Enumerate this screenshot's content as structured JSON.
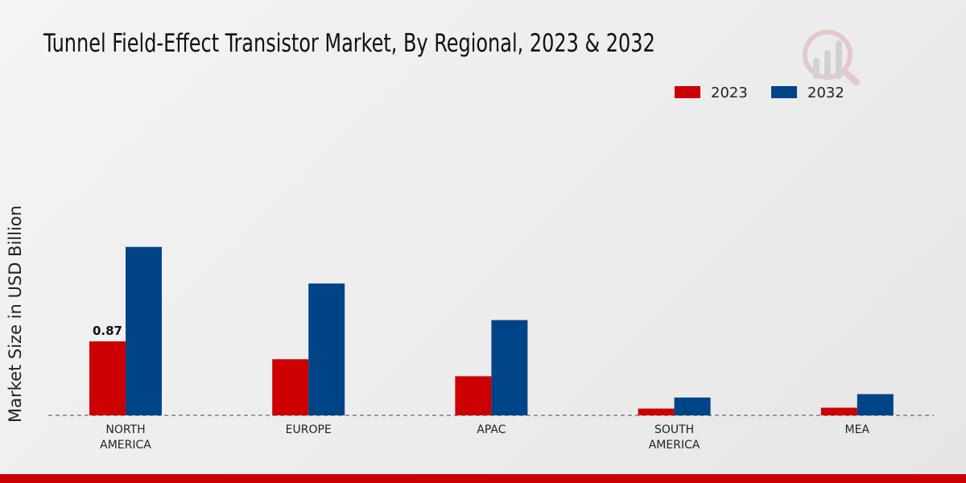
{
  "chart_data": {
    "type": "bar",
    "title": "Tunnel Field-Effect Transistor Market, By Regional, 2023 & 2032",
    "xlabel": "",
    "ylabel": "Market Size in USD Billion",
    "categories": [
      "NORTH AMERICA",
      "EUROPE",
      "APAC",
      "SOUTH AMERICA",
      "MEA"
    ],
    "category_lines": [
      [
        "NORTH",
        "AMERICA"
      ],
      [
        "EUROPE"
      ],
      [
        "APAC"
      ],
      [
        "SOUTH",
        "AMERICA"
      ],
      [
        "MEA"
      ]
    ],
    "series": [
      {
        "name": "2023",
        "color": "#cc0000",
        "values": [
          0.87,
          0.66,
          0.46,
          0.08,
          0.09
        ]
      },
      {
        "name": "2032",
        "color": "#004488",
        "values": [
          1.98,
          1.55,
          1.12,
          0.21,
          0.25
        ]
      }
    ],
    "data_labels": [
      {
        "series": 0,
        "index": 0,
        "text": "0.87"
      }
    ],
    "ylim": [
      0,
      2.3
    ],
    "legend": "top-right",
    "grid": false
  }
}
